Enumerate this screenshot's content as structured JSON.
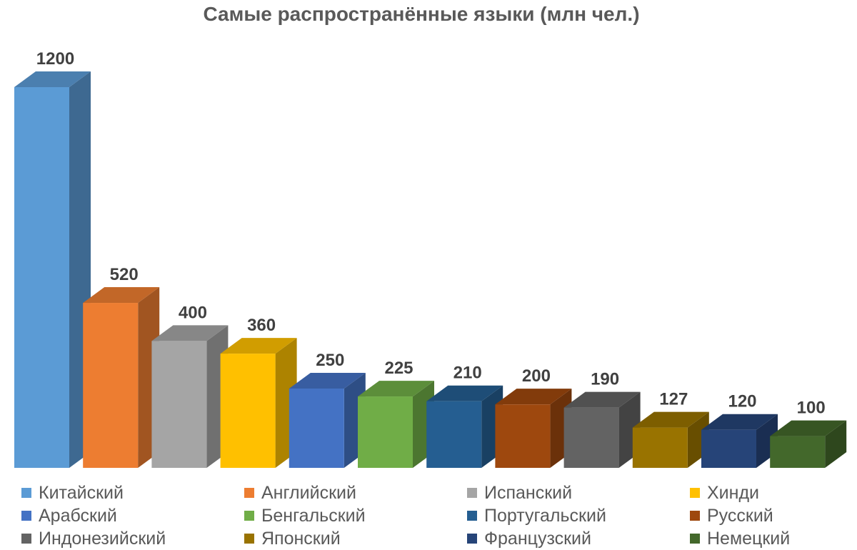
{
  "chart_data": {
    "type": "bar",
    "title": "Самые распространённые языки (млн чел.)",
    "categories": [
      "Китайский",
      "Английский",
      "Испанский",
      "Хинди",
      "Арабский",
      "Бенгальский",
      "Португальский",
      "Русский",
      "Индонезийский",
      "Японский",
      "Французский",
      "Немецкий"
    ],
    "values": [
      1200,
      520,
      400,
      360,
      250,
      225,
      210,
      200,
      190,
      127,
      120,
      100
    ],
    "value_labels": [
      "1200",
      "520",
      "400",
      "360",
      "250",
      "225",
      "210",
      "200",
      "190",
      "127",
      "120",
      "100"
    ],
    "colors": [
      "#5b9bd5",
      "#ed7d31",
      "#a5a5a5",
      "#ffc000",
      "#4472c4",
      "#70ad47",
      "#255e91",
      "#9e480e",
      "#636363",
      "#997300",
      "#264478",
      "#43682b"
    ],
    "ylim": [
      0,
      1200
    ],
    "grid": false,
    "legend_position": "bottom",
    "style": "3d-column"
  }
}
